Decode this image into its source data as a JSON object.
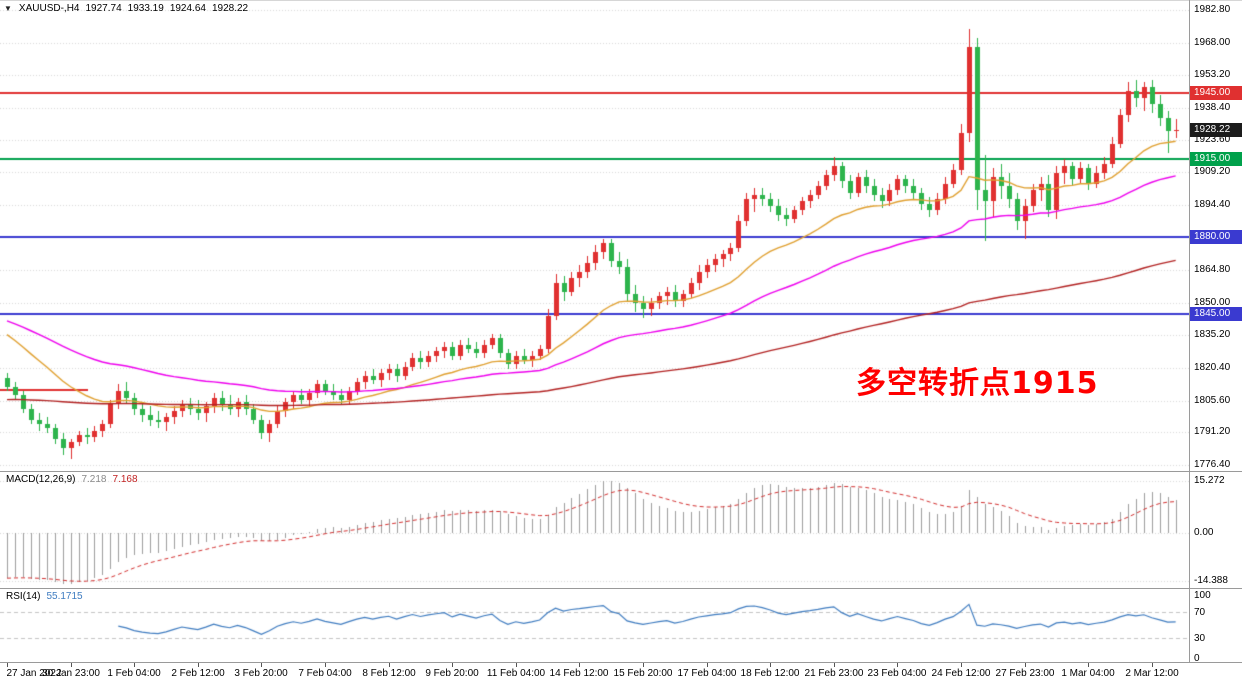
{
  "ui": {
    "dropdown_icon": "▼"
  },
  "chart_data": [
    {
      "id": "price",
      "type": "candlestick",
      "symbol_period": "XAUUSD-,H4",
      "ohlc_display": {
        "open": "1927.74",
        "high": "1933.19",
        "low": "1924.64",
        "close": "1928.22"
      },
      "ylim": [
        1773.7,
        1987.3
      ],
      "axis_ticks": [
        "1982.80",
        "1968.00",
        "1953.20",
        "1938.40",
        "1923.60",
        "1909.20",
        "1894.40",
        "1880.00",
        "1864.80",
        "1850.00",
        "1835.20",
        "1820.40",
        "1805.60",
        "1791.20",
        "1776.40"
      ],
      "colors": {
        "up": "#e03030",
        "down": "#2db44c",
        "grid": "#d8d8d8"
      },
      "hlines": [
        {
          "price": 1945.0,
          "color": "#e03030",
          "width": 2
        },
        {
          "price": 1915.0,
          "color": "#00a14b",
          "width": 2
        },
        {
          "price": 1880.0,
          "color": "#3a3ad0",
          "width": 2
        },
        {
          "price": 1845.0,
          "color": "#3a3ad0",
          "width": 2
        }
      ],
      "segment": {
        "price": 1810.5,
        "x_from": 0,
        "x_to": 88,
        "color": "#e03030",
        "width": 2
      },
      "badges": [
        {
          "label": "1945.00",
          "price": 1945.0,
          "color": "#e03030"
        },
        {
          "label": "1928.22",
          "price": 1928.22,
          "color": "#1c1c1c"
        },
        {
          "label": "1915.00",
          "price": 1915.0,
          "color": "#00a14b"
        },
        {
          "label": "1880.00",
          "price": 1880.0,
          "color": "#3a3ad0"
        },
        {
          "label": "1845.00",
          "price": 1845.0,
          "color": "#3a3ad0"
        }
      ],
      "moving_averages": [
        {
          "name": "ma-fast",
          "period": 20,
          "seed": 1838,
          "color": "#e0a030"
        },
        {
          "name": "ma-mid",
          "period": 50,
          "seed": 1843,
          "color": "#ee00ee"
        },
        {
          "name": "ma-slow",
          "period": 150,
          "seed": 1806,
          "color": "#b22222"
        }
      ],
      "annotation": {
        "text": "多空转折点1915",
        "color": "#ff0000"
      },
      "time_labels": [
        "27 Jan 2022",
        "30 Jan 23:00",
        "1 Feb 04:00",
        "2 Feb 12:00",
        "3 Feb 20:00",
        "7 Feb 04:00",
        "8 Feb 12:00",
        "9 Feb 20:00",
        "11 Feb 04:00",
        "14 Feb 12:00",
        "15 Feb 20:00",
        "17 Feb 04:00",
        "18 Feb 12:00",
        "21 Feb 23:00",
        "23 Feb 04:00",
        "24 Feb 12:00",
        "27 Feb 23:00",
        "1 Mar 04:00",
        "2 Mar 12:00"
      ],
      "label_every": 8,
      "candles": [
        [
          1816,
          1818,
          1810,
          1812
        ],
        [
          1812,
          1814,
          1806,
          1808
        ],
        [
          1808,
          1810,
          1800,
          1802
        ],
        [
          1802,
          1804,
          1795,
          1797
        ],
        [
          1797,
          1800,
          1792,
          1795
        ],
        [
          1795,
          1798,
          1791,
          1793
        ],
        [
          1793,
          1795,
          1786,
          1788
        ],
        [
          1788,
          1791,
          1781,
          1784
        ],
        [
          1784,
          1788,
          1779,
          1787
        ],
        [
          1787,
          1792,
          1785,
          1790
        ],
        [
          1790,
          1793,
          1786,
          1789
        ],
        [
          1789,
          1794,
          1787,
          1792
        ],
        [
          1792,
          1797,
          1789,
          1795
        ],
        [
          1795,
          1806,
          1793,
          1804
        ],
        [
          1804,
          1813,
          1802,
          1810
        ],
        [
          1810,
          1814,
          1804,
          1807
        ],
        [
          1807,
          1809,
          1799,
          1802
        ],
        [
          1802,
          1805,
          1796,
          1799
        ],
        [
          1799,
          1803,
          1794,
          1797
        ],
        [
          1797,
          1801,
          1793,
          1796
        ],
        [
          1796,
          1800,
          1792,
          1798
        ],
        [
          1798,
          1803,
          1795,
          1801
        ],
        [
          1801,
          1806,
          1798,
          1804
        ],
        [
          1804,
          1807,
          1799,
          1802
        ],
        [
          1802,
          1806,
          1797,
          1800
        ],
        [
          1800,
          1805,
          1796,
          1803
        ],
        [
          1803,
          1809,
          1800,
          1807
        ],
        [
          1807,
          1810,
          1801,
          1804
        ],
        [
          1804,
          1808,
          1799,
          1802
        ],
        [
          1802,
          1807,
          1798,
          1805
        ],
        [
          1805,
          1808,
          1799,
          1802
        ],
        [
          1802,
          1804,
          1795,
          1797
        ],
        [
          1797,
          1799,
          1788,
          1791
        ],
        [
          1791,
          1797,
          1787,
          1795
        ],
        [
          1795,
          1803,
          1793,
          1801
        ],
        [
          1801,
          1807,
          1798,
          1805
        ],
        [
          1805,
          1810,
          1802,
          1808
        ],
        [
          1808,
          1811,
          1804,
          1806
        ],
        [
          1806,
          1811,
          1803,
          1809
        ],
        [
          1809,
          1815,
          1807,
          1813
        ],
        [
          1813,
          1815,
          1808,
          1810
        ],
        [
          1810,
          1813,
          1806,
          1808
        ],
        [
          1808,
          1811,
          1804,
          1806
        ],
        [
          1806,
          1812,
          1804,
          1810
        ],
        [
          1810,
          1816,
          1808,
          1814
        ],
        [
          1814,
          1819,
          1811,
          1817
        ],
        [
          1817,
          1820,
          1813,
          1815
        ],
        [
          1815,
          1820,
          1812,
          1818
        ],
        [
          1818,
          1822,
          1815,
          1820
        ],
        [
          1820,
          1822,
          1814,
          1817
        ],
        [
          1817,
          1823,
          1815,
          1821
        ],
        [
          1821,
          1827,
          1819,
          1825
        ],
        [
          1825,
          1828,
          1820,
          1823
        ],
        [
          1823,
          1828,
          1821,
          1826
        ],
        [
          1826,
          1830,
          1823,
          1828
        ],
        [
          1828,
          1832,
          1825,
          1830
        ],
        [
          1830,
          1832,
          1824,
          1826
        ],
        [
          1826,
          1833,
          1824,
          1831
        ],
        [
          1831,
          1834,
          1827,
          1829
        ],
        [
          1829,
          1832,
          1825,
          1827
        ],
        [
          1827,
          1833,
          1825,
          1831
        ],
        [
          1831,
          1836,
          1829,
          1834
        ],
        [
          1834,
          1836,
          1825,
          1827
        ],
        [
          1827,
          1829,
          1820,
          1822
        ],
        [
          1822,
          1828,
          1820,
          1826
        ],
        [
          1826,
          1829,
          1822,
          1824
        ],
        [
          1824,
          1828,
          1821,
          1826
        ],
        [
          1826,
          1831,
          1824,
          1829
        ],
        [
          1829,
          1847,
          1827,
          1844
        ],
        [
          1844,
          1863,
          1842,
          1859
        ],
        [
          1859,
          1862,
          1851,
          1855
        ],
        [
          1855,
          1864,
          1853,
          1861
        ],
        [
          1861,
          1867,
          1857,
          1864
        ],
        [
          1864,
          1871,
          1861,
          1868
        ],
        [
          1868,
          1876,
          1865,
          1873
        ],
        [
          1873,
          1879,
          1870,
          1877
        ],
        [
          1877,
          1879,
          1866,
          1869
        ],
        [
          1869,
          1873,
          1863,
          1866
        ],
        [
          1866,
          1870,
          1851,
          1854
        ],
        [
          1854,
          1858,
          1846,
          1850
        ],
        [
          1850,
          1853,
          1843,
          1847
        ],
        [
          1847,
          1852,
          1844,
          1850
        ],
        [
          1850,
          1855,
          1847,
          1853
        ],
        [
          1853,
          1857,
          1849,
          1855
        ],
        [
          1855,
          1858,
          1848,
          1851
        ],
        [
          1851,
          1856,
          1848,
          1854
        ],
        [
          1854,
          1861,
          1852,
          1859
        ],
        [
          1859,
          1867,
          1856,
          1864
        ],
        [
          1864,
          1870,
          1861,
          1867
        ],
        [
          1867,
          1872,
          1864,
          1870
        ],
        [
          1870,
          1874,
          1866,
          1872
        ],
        [
          1872,
          1877,
          1869,
          1875
        ],
        [
          1875,
          1890,
          1873,
          1887
        ],
        [
          1887,
          1900,
          1885,
          1897
        ],
        [
          1897,
          1902,
          1891,
          1899
        ],
        [
          1899,
          1902,
          1894,
          1897
        ],
        [
          1897,
          1900,
          1891,
          1894
        ],
        [
          1894,
          1897,
          1887,
          1890
        ],
        [
          1890,
          1893,
          1885,
          1888
        ],
        [
          1888,
          1894,
          1886,
          1892
        ],
        [
          1892,
          1898,
          1890,
          1896
        ],
        [
          1896,
          1901,
          1893,
          1899
        ],
        [
          1899,
          1905,
          1897,
          1903
        ],
        [
          1903,
          1910,
          1901,
          1908
        ],
        [
          1908,
          1916,
          1905,
          1912
        ],
        [
          1912,
          1914,
          1902,
          1905
        ],
        [
          1905,
          1908,
          1897,
          1900
        ],
        [
          1900,
          1909,
          1898,
          1907
        ],
        [
          1907,
          1910,
          1900,
          1903
        ],
        [
          1903,
          1906,
          1896,
          1899
        ],
        [
          1899,
          1902,
          1893,
          1896
        ],
        [
          1896,
          1904,
          1894,
          1901
        ],
        [
          1901,
          1908,
          1899,
          1906
        ],
        [
          1906,
          1908,
          1900,
          1903
        ],
        [
          1903,
          1906,
          1897,
          1900
        ],
        [
          1900,
          1902,
          1892,
          1895
        ],
        [
          1895,
          1898,
          1889,
          1892
        ],
        [
          1892,
          1900,
          1890,
          1897
        ],
        [
          1897,
          1907,
          1895,
          1904
        ],
        [
          1904,
          1913,
          1902,
          1910
        ],
        [
          1910,
          1931,
          1908,
          1927
        ],
        [
          1927,
          1974,
          1923,
          1966
        ],
        [
          1966,
          1970,
          1892,
          1901
        ],
        [
          1901,
          1917,
          1878,
          1896
        ],
        [
          1896,
          1911,
          1889,
          1907
        ],
        [
          1907,
          1913,
          1897,
          1903
        ],
        [
          1903,
          1909,
          1893,
          1897
        ],
        [
          1897,
          1900,
          1883,
          1887
        ],
        [
          1887,
          1897,
          1879,
          1894
        ],
        [
          1894,
          1904,
          1891,
          1901
        ],
        [
          1901,
          1907,
          1896,
          1904
        ],
        [
          1904,
          1908,
          1889,
          1892
        ],
        [
          1892,
          1912,
          1888,
          1909
        ],
        [
          1909,
          1915,
          1904,
          1912
        ],
        [
          1912,
          1914,
          1903,
          1906
        ],
        [
          1906,
          1914,
          1904,
          1911
        ],
        [
          1911,
          1913,
          1901,
          1904
        ],
        [
          1904,
          1912,
          1902,
          1909
        ],
        [
          1909,
          1916,
          1906,
          1913
        ],
        [
          1913,
          1925,
          1911,
          1922
        ],
        [
          1922,
          1938,
          1920,
          1935
        ],
        [
          1935,
          1950,
          1932,
          1946
        ],
        [
          1946,
          1951,
          1939,
          1943
        ],
        [
          1943,
          1950,
          1937,
          1948
        ],
        [
          1948,
          1951,
          1936,
          1940
        ],
        [
          1940,
          1944,
          1930,
          1934
        ],
        [
          1934,
          1937,
          1918,
          1927.7
        ],
        [
          1927.74,
          1933.19,
          1924.64,
          1928.22
        ]
      ]
    },
    {
      "id": "macd",
      "type": "histogram_line",
      "label": "MACD(12,26,9)",
      "values_display": [
        "7.218",
        "7.168"
      ],
      "params": [
        12,
        26,
        9
      ],
      "seeds": {
        "fast": 1816,
        "slow": 1829
      },
      "axis": [
        {
          "text": "15.272",
          "value": 15.272
        },
        {
          "text": "0.00",
          "value": 0
        },
        {
          "text": "-14.388",
          "value": -14.388
        }
      ],
      "ylim": [
        -16.5,
        18.3
      ],
      "colors": {
        "hist": "#9e9e9e",
        "signal": "#d32f2f"
      }
    },
    {
      "id": "rsi",
      "type": "line",
      "label": "RSI(14)",
      "value_display": "55.1715",
      "period": 14,
      "levels": [
        70,
        30
      ],
      "axis": [
        "100",
        "70",
        "30",
        "0"
      ],
      "ylim": [
        0,
        100
      ],
      "color": "#3f7cc0"
    }
  ]
}
